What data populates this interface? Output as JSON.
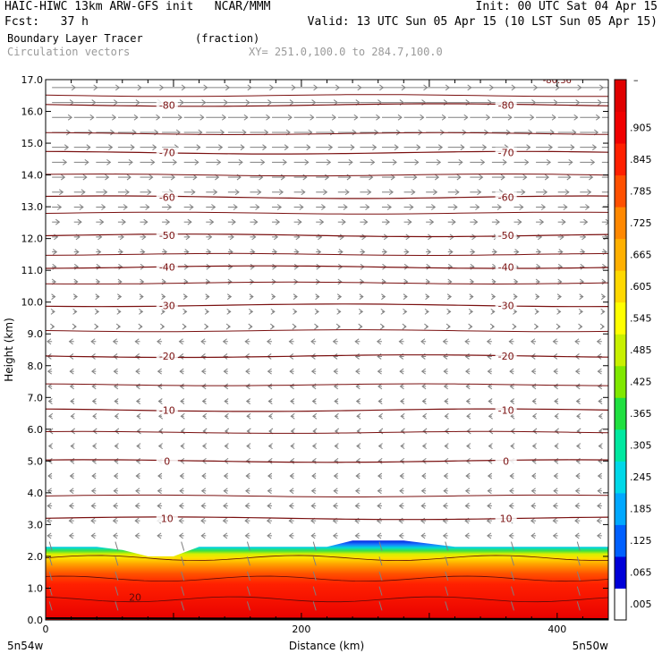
{
  "header": {
    "line1_left": "HAIC-HIWC 13km ARW-GFS init   NCAR/MMM",
    "line1_right": "Init: 00 UTC Sat 04 Apr 15",
    "line2_left": "Fcst:   37 h",
    "line2_right": "Valid: 13 UTC Sun 05 Apr 15 (10 LST Sun 05 Apr 15)",
    "field_name": "Boundary Layer Tracer",
    "field_units": "(fraction)",
    "vector_label": "Circulation vectors",
    "xy_label": "XY= 251.0,100.0 to 284.7,100.0"
  },
  "colors": {
    "contour": "#7a1010",
    "vector": "#808080",
    "frame": "#000000"
  },
  "chart_data": {
    "type": "heatmap",
    "ylabel": "Height (km)",
    "xlabel": "Distance (km)",
    "x_range": [
      0,
      440
    ],
    "y_range": [
      0,
      17
    ],
    "y_ticks": [
      "0.0",
      "1.0",
      "2.0",
      "3.0",
      "4.0",
      "5.0",
      "6.0",
      "7.0",
      "8.0",
      "9.0",
      "10.0",
      "11.0",
      "12.0",
      "13.0",
      "14.0",
      "15.0",
      "16.0",
      "17.0"
    ],
    "x_ticks": [
      {
        "value": 0,
        "label": "0"
      },
      {
        "value": 200,
        "label": "200"
      },
      {
        "value": 400,
        "label": "400"
      }
    ],
    "x_end_labels": {
      "left": "5n54w",
      "right": "5n50w"
    },
    "colorbar": {
      "labels": [
        ".005",
        ".065",
        ".125",
        ".185",
        ".245",
        ".305",
        ".365",
        ".425",
        ".485",
        ".545",
        ".605",
        ".665",
        ".725",
        ".785",
        ".845",
        ".905"
      ],
      "top_label": "–",
      "colors": [
        "#ffffff",
        "#0000d8",
        "#0060ff",
        "#00a8ff",
        "#00d8e8",
        "#00e8a0",
        "#20e040",
        "#80e800",
        "#c8f000",
        "#ffff00",
        "#ffd800",
        "#ffb000",
        "#ff8800",
        "#ff5000",
        "#ff2000",
        "#f00000",
        "#e00000"
      ]
    },
    "boundary_layer_top_km": [
      2.3,
      2.3,
      2.3,
      2.2,
      2.0,
      2.0,
      2.3,
      2.3,
      2.3,
      2.3,
      2.3,
      2.3,
      2.5,
      2.5,
      2.5,
      2.4,
      2.3,
      2.3,
      2.3,
      2.3,
      2.3,
      2.3,
      2.3
    ],
    "contours": [
      {
        "label": "10",
        "height_km": 3.2
      },
      {
        "label": "0",
        "height_km": 5.0
      },
      {
        "label": "-10",
        "height_km": 6.6
      },
      {
        "label": "-20",
        "height_km": 8.3
      },
      {
        "label": "-30",
        "height_km": 9.9
      },
      {
        "label": "-40",
        "height_km": 11.1
      },
      {
        "label": "-50",
        "height_km": 12.1
      },
      {
        "label": "-60",
        "height_km": 13.3
      },
      {
        "label": "-70",
        "height_km": 14.7
      },
      {
        "label": "-80",
        "height_km": 16.2
      }
    ],
    "surface_label": "20",
    "top_partial_label": "-80.36"
  }
}
